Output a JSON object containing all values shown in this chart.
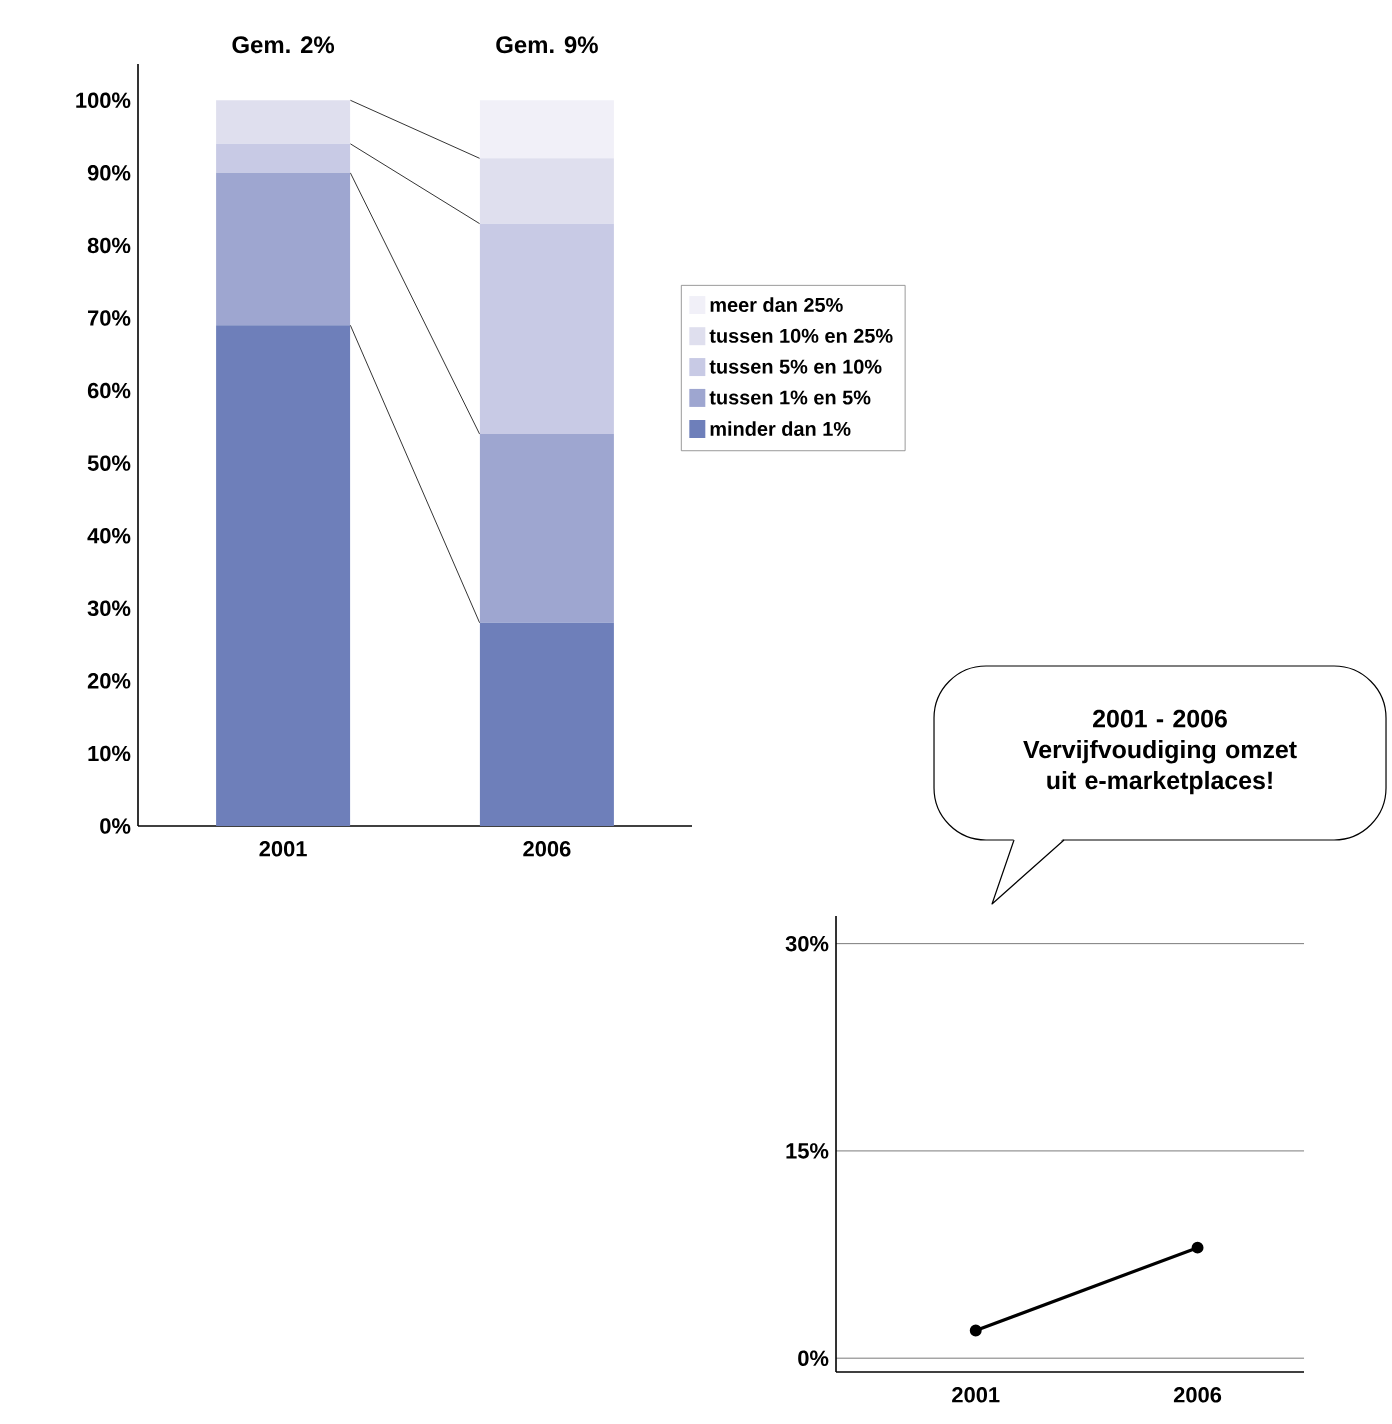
{
  "chart_data": [
    {
      "type": "bar",
      "stacked": true,
      "categories": [
        "2001",
        "2006"
      ],
      "series": [
        {
          "name": "minder dan 1%",
          "color": "#6e7fba",
          "values": [
            69,
            28
          ]
        },
        {
          "name": "tussen 1% en 5%",
          "color": "#9ea6d0",
          "values": [
            21,
            26
          ]
        },
        {
          "name": "tussen 5% en 10%",
          "color": "#c8cae5",
          "values": [
            4,
            29
          ]
        },
        {
          "name": "tussen 10% en 25%",
          "color": "#dfdfee",
          "values": [
            6,
            9
          ]
        },
        {
          "name": "meer dan 25%",
          "color": "#f1f0f8",
          "values": [
            0,
            8
          ]
        }
      ],
      "ylim": [
        0,
        105
      ],
      "yticks": [
        {
          "value": 0,
          "label": "0%"
        },
        {
          "value": 10,
          "label": "10%"
        },
        {
          "value": 20,
          "label": "20%"
        },
        {
          "value": 30,
          "label": "30%"
        },
        {
          "value": 40,
          "label": "40%"
        },
        {
          "value": 50,
          "label": "50%"
        },
        {
          "value": 60,
          "label": "60%"
        },
        {
          "value": 70,
          "label": "70%"
        },
        {
          "value": 80,
          "label": "80%"
        },
        {
          "value": 90,
          "label": "90%"
        },
        {
          "value": 100,
          "label": "100%"
        }
      ],
      "annotations": [
        {
          "text": "Gem. 2%",
          "x": "2001",
          "y": 100
        },
        {
          "text": "Gem. 9%",
          "x": "2006",
          "y": 100
        }
      ],
      "legend": "right",
      "grid": false
    },
    {
      "type": "line",
      "categories": [
        "2001",
        "2006"
      ],
      "series": [
        {
          "color": "#000000",
          "values": [
            2,
            8
          ]
        }
      ],
      "ylim": [
        -1,
        32
      ],
      "yticks": [
        {
          "value": 0,
          "label": "0%"
        },
        {
          "value": 15,
          "label": "15%"
        },
        {
          "value": 30,
          "label": "30%"
        }
      ],
      "annotations": [
        "2001 - 2006 Vervijfvoudiging omzet uit e-marketplaces!"
      ],
      "marker": "circle",
      "line_style": "solid",
      "grid": "y"
    }
  ]
}
